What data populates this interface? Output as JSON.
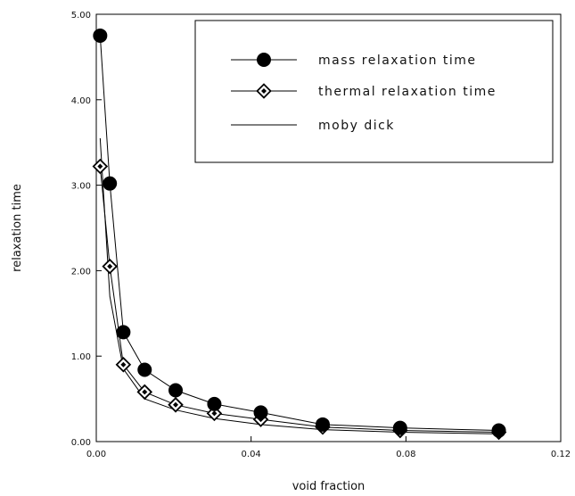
{
  "chart_data": {
    "type": "line",
    "xlabel": "void fraction",
    "ylabel": "relaxation time",
    "xlim": [
      0,
      0.12
    ],
    "ylim": [
      0,
      5
    ],
    "x_ticks": [
      0,
      0.04,
      0.08,
      0.12
    ],
    "x_tick_labels": [
      "0.00",
      "0.04",
      "0.08",
      "0.12"
    ],
    "y_ticks": [
      0,
      1,
      2,
      3,
      4,
      5
    ],
    "y_tick_labels": [
      "0.00",
      "1.00",
      "2.00",
      "3.00",
      "4.00",
      "5.00"
    ],
    "grid": false,
    "legend_position": "top-right",
    "series": [
      {
        "name": "mass relaxation time",
        "marker": "filled-circle",
        "color": "#000000",
        "x": [
          0.001,
          0.0035,
          0.007,
          0.0125,
          0.0205,
          0.0305,
          0.0425,
          0.0585,
          0.0785,
          0.104
        ],
        "y": [
          4.75,
          3.02,
          1.28,
          0.84,
          0.6,
          0.44,
          0.34,
          0.2,
          0.16,
          0.13
        ]
      },
      {
        "name": "thermal relaxation time",
        "marker": "open-diamond",
        "color": "#000000",
        "x": [
          0.001,
          0.0035,
          0.007,
          0.0125,
          0.0205,
          0.0305,
          0.0425,
          0.0585,
          0.0785,
          0.104
        ],
        "y": [
          3.22,
          2.05,
          0.9,
          0.58,
          0.43,
          0.33,
          0.26,
          0.17,
          0.13,
          0.11
        ]
      },
      {
        "name": "moby dick",
        "marker": "none",
        "color": "#000000",
        "x": [
          0.001,
          0.0035,
          0.007,
          0.0125,
          0.0205,
          0.0305,
          0.0425,
          0.0585,
          0.0785,
          0.104
        ],
        "y": [
          3.55,
          1.7,
          0.85,
          0.5,
          0.37,
          0.27,
          0.2,
          0.14,
          0.11,
          0.09
        ]
      }
    ]
  }
}
